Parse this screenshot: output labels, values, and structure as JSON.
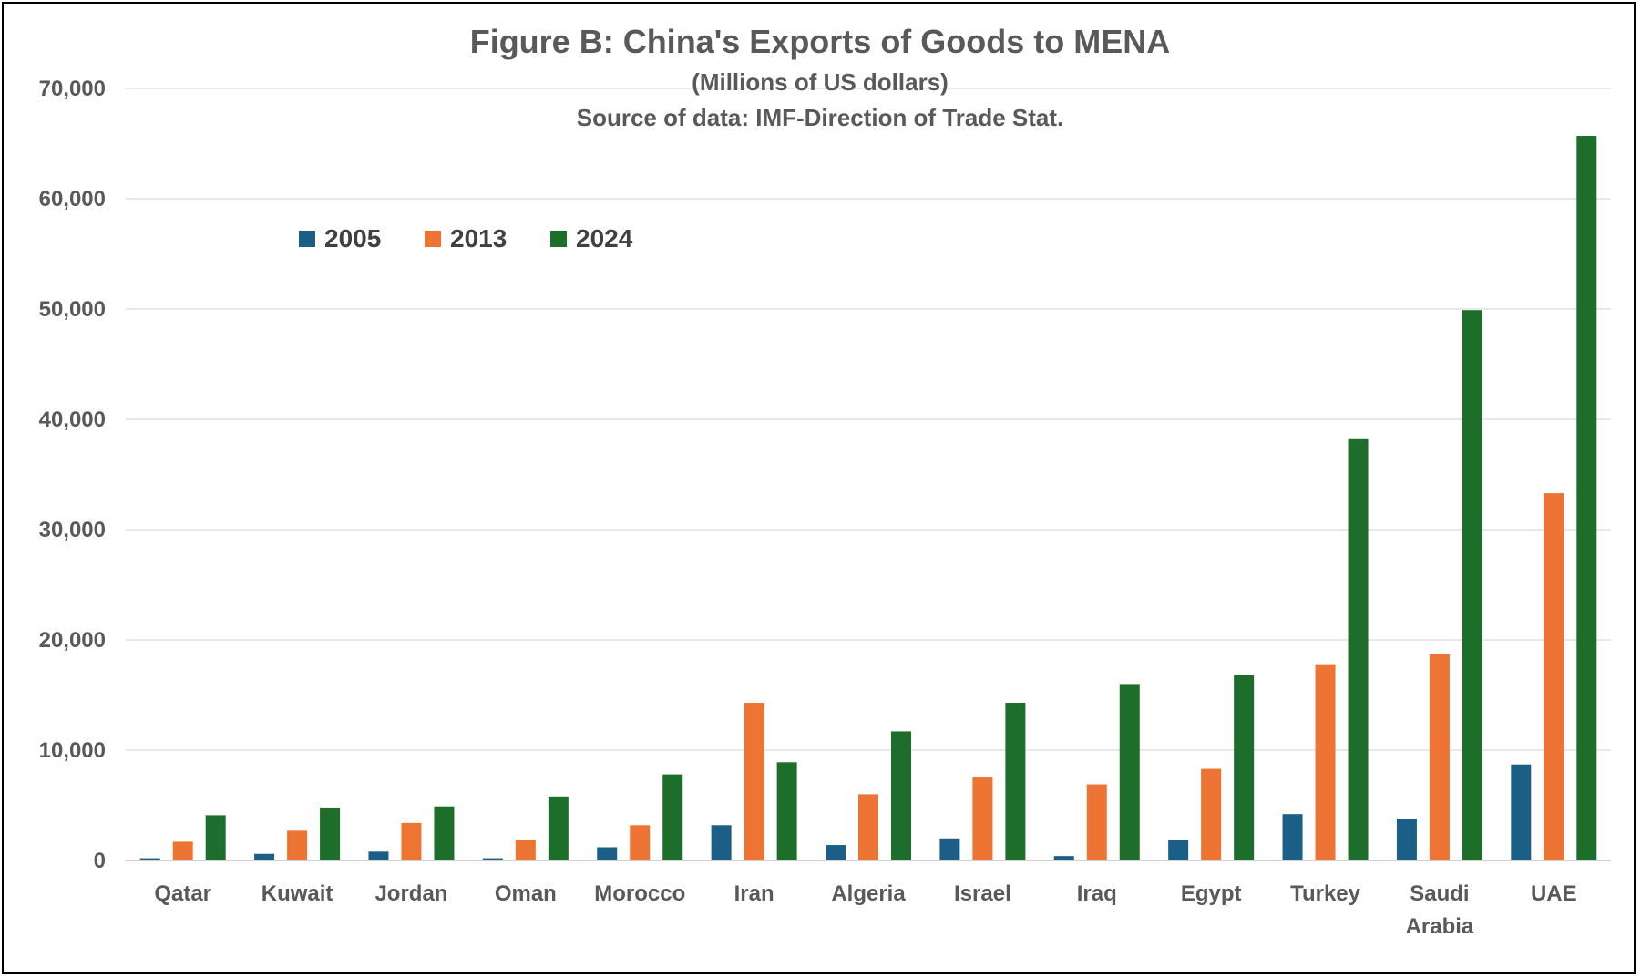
{
  "chart_data": {
    "type": "bar",
    "title": "Figure B: China's Exports of Goods to MENA",
    "subtitle": "(Millions of US dollars)",
    "source": "Source of data: IMF-Direction of Trade Stat.",
    "xlabel": "",
    "ylabel": "",
    "ylim": [
      0,
      70000
    ],
    "yticks": [
      0,
      10000,
      20000,
      30000,
      40000,
      50000,
      60000,
      70000
    ],
    "ytick_labels": [
      "0",
      "10,000",
      "20,000",
      "30,000",
      "40,000",
      "50,000",
      "60,000",
      "70,000"
    ],
    "grid": true,
    "legend_position": "top-left",
    "categories": [
      [
        "Qatar"
      ],
      [
        "Kuwait"
      ],
      [
        "Jordan"
      ],
      [
        "Oman"
      ],
      [
        "Morocco"
      ],
      [
        "Iran"
      ],
      [
        "Algeria"
      ],
      [
        "Israel"
      ],
      [
        "Iraq"
      ],
      [
        "Egypt"
      ],
      [
        "Turkey"
      ],
      [
        "Saudi",
        "Arabia"
      ],
      [
        "UAE"
      ]
    ],
    "series": [
      {
        "name": "2005",
        "color": "#1b5e86",
        "values": [
          200,
          600,
          800,
          200,
          1200,
          3200,
          1400,
          2000,
          400,
          1900,
          4200,
          3800,
          8700
        ]
      },
      {
        "name": "2013",
        "color": "#ed7433",
        "values": [
          1700,
          2700,
          3400,
          1900,
          3200,
          14300,
          6000,
          7600,
          6900,
          8300,
          17800,
          18700,
          33300
        ]
      },
      {
        "name": "2024",
        "color": "#1d6e2a",
        "values": [
          4100,
          4800,
          4900,
          5800,
          7800,
          8900,
          11700,
          14300,
          16000,
          16800,
          38200,
          49900,
          65700
        ]
      }
    ]
  }
}
